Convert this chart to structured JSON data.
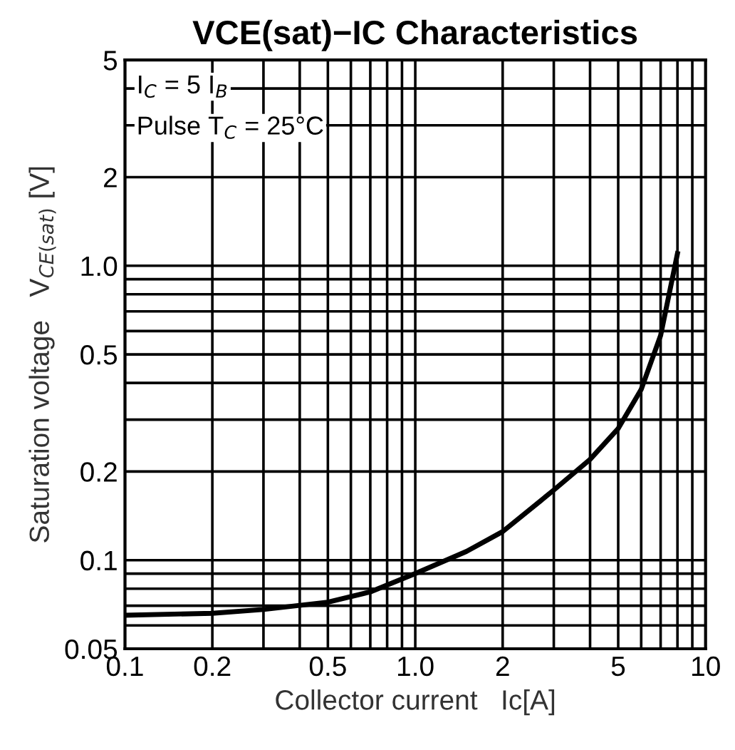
{
  "chart_data": {
    "type": "line",
    "title": "VCE(sat)−IC Characteristics",
    "xlabel": "Collector current   Ic[A]",
    "ylabel": "Saturation voltage   V$_{CE(sat)}$ [V]",
    "annotations": [
      "I$_{C}$ = 5 I$_{B}$",
      "Pulse T$_{C}$ = 25°C"
    ],
    "log": "xy",
    "grid": true,
    "marker": "none",
    "line_style": "solid",
    "x": [
      0.1,
      0.2,
      0.3,
      0.5,
      0.7,
      1.0,
      1.5,
      2,
      3,
      4,
      5,
      6,
      7,
      8
    ],
    "series": [
      {
        "color": "#000000",
        "values": [
          0.065,
          0.066,
          0.068,
          0.072,
          0.078,
          0.09,
          0.107,
          0.125,
          0.173,
          0.22,
          0.28,
          0.38,
          0.58,
          1.1
        ]
      }
    ],
    "xlim": [
      0.1,
      10
    ],
    "ylim": [
      0.05,
      5
    ],
    "xticks": [
      0.1,
      0.2,
      0.5,
      {
        "value": 1,
        "label": "1.0"
      },
      2,
      5,
      10
    ],
    "yticks": [
      0.05,
      0.1,
      0.2,
      0.5,
      {
        "value": 1,
        "label": "1.0"
      },
      2,
      5
    ]
  }
}
